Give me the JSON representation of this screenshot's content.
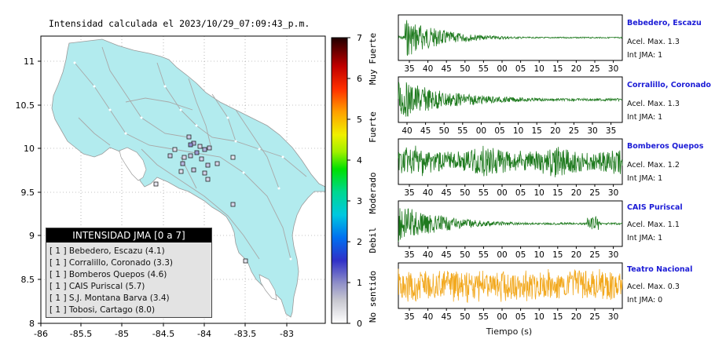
{
  "map": {
    "title": "Intensidad calculada el 2023/10/29_07:09:43_p.m.",
    "x_ticks": [
      "-86",
      "-85.5",
      "-85",
      "-84.5",
      "-84",
      "-83.5",
      "-83"
    ],
    "y_ticks": [
      "11",
      "10.5",
      "10",
      "9.5",
      "9",
      "8.5",
      "8"
    ],
    "land_color": "#b2ebee",
    "legend": {
      "title": "INTENSIDAD JMA [0 a 7]",
      "rows": [
        "[ 1 ]  Bebedero, Escazu (4.1)",
        "[ 1 ]  Corralillo, Coronado (3.3)",
        "[ 1 ]  Bomberos Quepos (4.6)",
        "[ 1 ]  CAIS Puriscal (5.7)",
        "[ 1 ]  S.J. Montana Barva (3.4)",
        "[ 1 ]  Tobosi, Cartago (8.0)"
      ]
    }
  },
  "colorbar": {
    "ticks": [
      "7",
      "6",
      "5",
      "4",
      "3",
      "2",
      "1",
      "0"
    ],
    "labels": [
      "Muy Fuerte",
      "Fuerte",
      "Moderado",
      "Debil",
      "No sentido"
    ]
  },
  "traces": {
    "xlabel": "Tiempo (s)",
    "stations": [
      {
        "name": "Bebedero, Escazu",
        "accel": "Acel. Max. 1.3",
        "jma": "Int JMA: 1",
        "color": "#1e7a1e",
        "ticks": [
          "35",
          "40",
          "45",
          "50",
          "55",
          "00",
          "05",
          "10",
          "15",
          "20",
          "25",
          "30"
        ]
      },
      {
        "name": "Corralillo, Coronado",
        "accel": "Acel. Max. 1.3",
        "jma": "Int JMA: 1",
        "color": "#1e7a1e",
        "ticks": [
          "40",
          "45",
          "50",
          "55",
          "00",
          "05",
          "10",
          "15",
          "20",
          "25",
          "30",
          "35"
        ]
      },
      {
        "name": "Bomberos Quepos",
        "accel": "Acel. Max. 1.2",
        "jma": "Int JMA: 1",
        "color": "#1e7a1e",
        "ticks": [
          "35",
          "40",
          "45",
          "50",
          "55",
          "00",
          "05",
          "10",
          "15",
          "20",
          "25",
          "30"
        ]
      },
      {
        "name": "CAIS Puriscal",
        "accel": "Acel. Max. 1.1",
        "jma": "Int JMA: 1",
        "color": "#1e7a1e",
        "ticks": [
          "35",
          "40",
          "45",
          "50",
          "55",
          "00",
          "05",
          "10",
          "15",
          "20",
          "25",
          "30"
        ]
      },
      {
        "name": "Teatro Nacional",
        "accel": "Acel. Max. 0.3",
        "jma": "Int JMA: 0",
        "color": "#f2a81d",
        "ticks": [
          "35",
          "40",
          "45",
          "50",
          "55",
          "00",
          "05",
          "10",
          "15",
          "20",
          "25",
          "30"
        ]
      }
    ]
  },
  "chart_data": {
    "type": "line",
    "title": "Intensidad calculada el 2023/10/29_07:09:43_p.m.",
    "xlabel": "Tiempo (s)",
    "series": [
      {
        "name": "Bebedero, Escazu",
        "acel_max": 1.3,
        "int_jma": 1
      },
      {
        "name": "Corralillo, Coronado",
        "acel_max": 1.3,
        "int_jma": 1
      },
      {
        "name": "Bomberos Quepos",
        "acel_max": 1.2,
        "int_jma": 1
      },
      {
        "name": "CAIS Puriscal",
        "acel_max": 1.1,
        "int_jma": 1
      },
      {
        "name": "Teatro Nacional",
        "acel_max": 0.3,
        "int_jma": 0
      }
    ],
    "map_xlim": [
      -86,
      -82.5
    ],
    "map_ylim": [
      8,
      11.3
    ],
    "colorbar_range": [
      0,
      7
    ]
  }
}
